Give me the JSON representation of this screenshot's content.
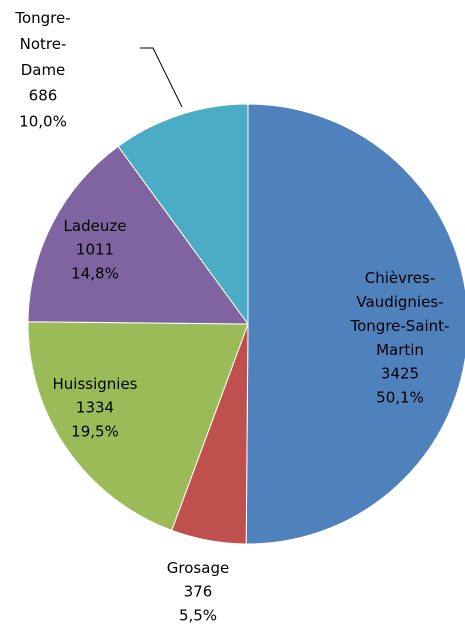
{
  "chart_data": {
    "type": "pie",
    "categories": [
      "Chièvres-Vaudignies-Tongre-Saint-Martin",
      "Grosage",
      "Huissignies",
      "Ladeuze",
      "Tongre-Notre-Dame"
    ],
    "values": [
      3425,
      376,
      1334,
      1011,
      686
    ],
    "percentages": [
      {
        "value": 50.1,
        "label": "50,1%"
      },
      {
        "value": 5.5,
        "label": "5,5%"
      },
      {
        "value": 19.5,
        "label": "19,5%"
      },
      {
        "value": 14.8,
        "label": "14,8%"
      },
      {
        "value": 10.0,
        "label": "10,0%"
      }
    ],
    "colors": [
      "#4f81bd",
      "#c0504d",
      "#9bbb59",
      "#8064a2",
      "#4bacc6"
    ]
  }
}
